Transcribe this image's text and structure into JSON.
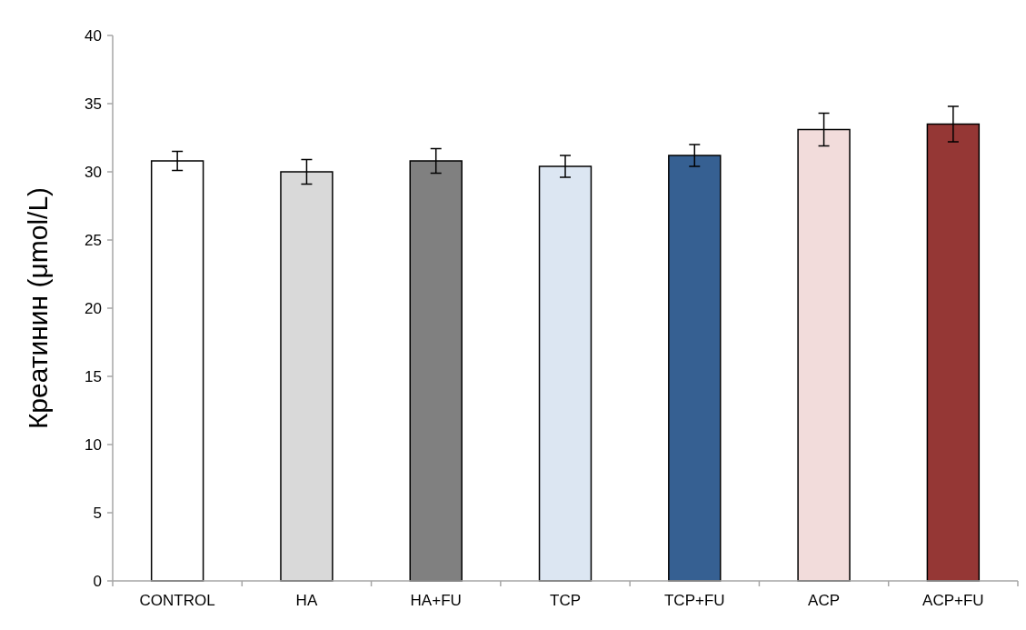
{
  "chart_data": {
    "type": "bar",
    "ylabel": "Креатинин  (μmol/L)",
    "categories": [
      "CONTROL",
      "HA",
      "HA+FU",
      "TCP",
      "TCP+FU",
      "ACP",
      "ACP+FU"
    ],
    "values": [
      30.8,
      30.0,
      30.8,
      30.4,
      31.2,
      33.1,
      33.5
    ],
    "colors": [
      "#ffffff",
      "#d9d9d9",
      "#808080",
      "#dce6f2",
      "#366092",
      "#f2dcdb",
      "#953735"
    ],
    "errors": [
      0.7,
      0.9,
      0.9,
      0.8,
      0.8,
      1.2,
      1.3
    ],
    "ylim": [
      0,
      40
    ],
    "yticks": [
      0,
      5,
      10,
      15,
      20,
      25,
      30,
      35,
      40
    ],
    "grid": false
  }
}
